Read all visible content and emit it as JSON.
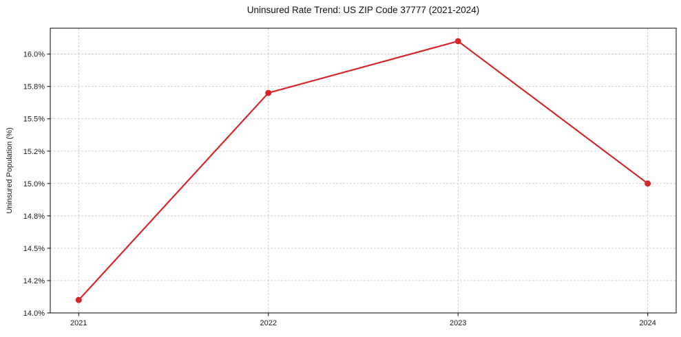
{
  "chart_data": {
    "type": "line",
    "title": "Uninsured Rate Trend: US ZIP Code 37777 (2021-2024)",
    "xlabel": "",
    "ylabel": "Uninsured Population (%)",
    "x": [
      2021,
      2022,
      2023,
      2024
    ],
    "xtick_labels": [
      "2021",
      "2022",
      "2023",
      "2024"
    ],
    "values": [
      14.1,
      15.7,
      16.1,
      15.0
    ],
    "xlim": [
      2020.85,
      2024.15
    ],
    "ylim": [
      14.0,
      16.2
    ],
    "yticks": [
      {
        "value": 14.0,
        "label": "14.0%"
      },
      {
        "value": 14.25,
        "label": "14.2%"
      },
      {
        "value": 14.5,
        "label": "14.5%"
      },
      {
        "value": 14.75,
        "label": "14.8%"
      },
      {
        "value": 15.0,
        "label": "15.0%"
      },
      {
        "value": 15.25,
        "label": "15.2%"
      },
      {
        "value": 15.5,
        "label": "15.5%"
      },
      {
        "value": 15.75,
        "label": "15.8%"
      },
      {
        "value": 16.0,
        "label": "16.0%"
      }
    ],
    "grid": true,
    "grid_style": "dashed",
    "legend": false,
    "line_color": "#d62728",
    "marker": "circle",
    "grid_color": "#c9c9c9",
    "axis_color": "#000000",
    "text_color": "#1a1a1a",
    "background": "#ffffff"
  }
}
